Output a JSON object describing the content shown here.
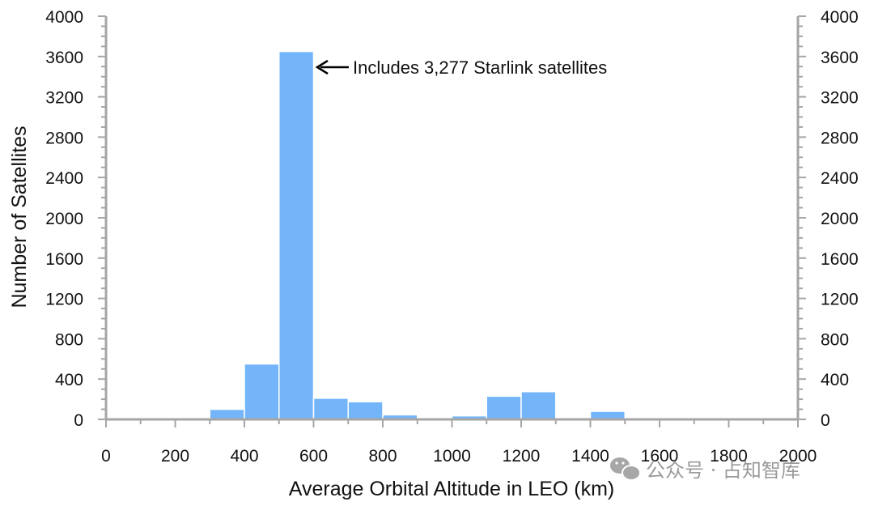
{
  "chart_data": {
    "type": "bar",
    "title": "",
    "xlabel": "Average Orbital Altitude in LEO (km)",
    "ylabel": "Number of Satellites",
    "xlim": [
      0,
      2000
    ],
    "ylim": [
      0,
      4000
    ],
    "x_ticks": [
      "0",
      "200",
      "400",
      "600",
      "800",
      "1000",
      "1200",
      "1400",
      "1600",
      "1800",
      "2000"
    ],
    "y_ticks": [
      "0",
      "400",
      "800",
      "1200",
      "1600",
      "2000",
      "2400",
      "2800",
      "3200",
      "3600",
      "4000"
    ],
    "secondary_y_axis": true,
    "bin_width": 100,
    "bins": [
      {
        "start": 0,
        "end": 100,
        "value": 5
      },
      {
        "start": 100,
        "end": 200,
        "value": 5
      },
      {
        "start": 200,
        "end": 300,
        "value": 15
      },
      {
        "start": 300,
        "end": 400,
        "value": 100
      },
      {
        "start": 400,
        "end": 500,
        "value": 550
      },
      {
        "start": 500,
        "end": 600,
        "value": 3650
      },
      {
        "start": 600,
        "end": 700,
        "value": 210
      },
      {
        "start": 700,
        "end": 800,
        "value": 175
      },
      {
        "start": 800,
        "end": 900,
        "value": 45
      },
      {
        "start": 900,
        "end": 1000,
        "value": 15
      },
      {
        "start": 1000,
        "end": 1100,
        "value": 35
      },
      {
        "start": 1100,
        "end": 1200,
        "value": 230
      },
      {
        "start": 1200,
        "end": 1300,
        "value": 275
      },
      {
        "start": 1300,
        "end": 1400,
        "value": 5
      },
      {
        "start": 1400,
        "end": 1500,
        "value": 80
      },
      {
        "start": 1500,
        "end": 1600,
        "value": 5
      },
      {
        "start": 1600,
        "end": 1700,
        "value": 3
      },
      {
        "start": 1700,
        "end": 1800,
        "value": 3
      },
      {
        "start": 1800,
        "end": 1900,
        "value": 3
      },
      {
        "start": 1900,
        "end": 2000,
        "value": 3
      }
    ],
    "bar_color": "#74B5FA",
    "annotation": {
      "text": "Includes 3,277 Starlink satellites",
      "target_x": 550,
      "target_y": 3650
    }
  },
  "watermark": {
    "text": "公众号 · 占知智库",
    "icon": "wechat-icon"
  }
}
